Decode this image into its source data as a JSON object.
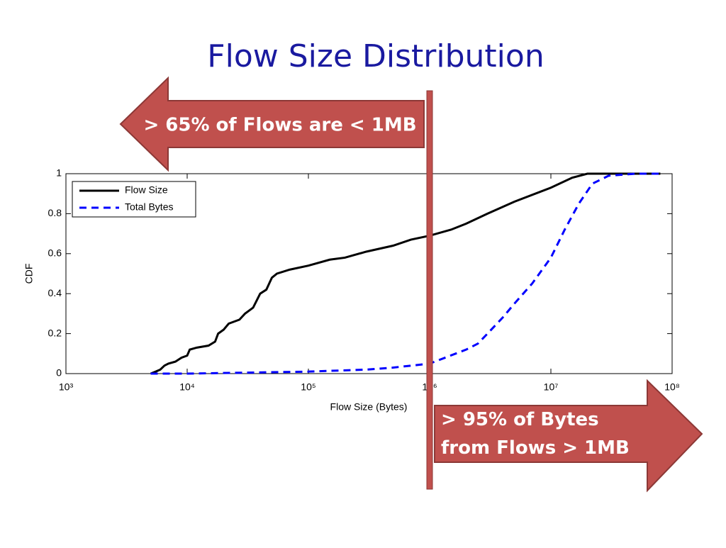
{
  "chart_data": {
    "type": "line",
    "title": "Flow Size Distribution",
    "xlabel": "Flow Size (Bytes)",
    "ylabel": "CDF",
    "xscale": "log",
    "xlim": [
      1000,
      100000000
    ],
    "xticks": [
      {
        "value": 1000,
        "label": "10³"
      },
      {
        "value": 10000,
        "label": "10⁴"
      },
      {
        "value": 100000,
        "label": "10⁵"
      },
      {
        "value": 1000000,
        "label": "10⁶"
      },
      {
        "value": 10000000,
        "label": "10⁷"
      },
      {
        "value": 100000000,
        "label": "10⁸"
      }
    ],
    "ylim": [
      0,
      1
    ],
    "yticks": [
      0,
      0.2,
      0.4,
      0.6,
      0.8,
      1
    ],
    "grid": false,
    "legend": "upper-left",
    "series": [
      {
        "name": "Flow Size",
        "color": "#000000",
        "style": "solid",
        "x": [
          5000,
          5500,
          6000,
          6500,
          7000,
          8000,
          9000,
          10000,
          10500,
          12000,
          15000,
          17000,
          18000,
          20000,
          22000,
          27000,
          30000,
          35000,
          40000,
          45000,
          50000,
          55000,
          70000,
          100000,
          150000,
          200000,
          300000,
          500000,
          700000,
          1000000,
          1500000,
          2000000,
          3000000,
          5000000,
          10000000,
          15000000,
          20000000,
          80000000
        ],
        "values": [
          0,
          0.01,
          0.02,
          0.04,
          0.05,
          0.06,
          0.08,
          0.09,
          0.12,
          0.13,
          0.14,
          0.16,
          0.2,
          0.22,
          0.25,
          0.27,
          0.3,
          0.33,
          0.4,
          0.42,
          0.48,
          0.5,
          0.52,
          0.54,
          0.57,
          0.58,
          0.61,
          0.64,
          0.67,
          0.69,
          0.72,
          0.75,
          0.8,
          0.86,
          0.93,
          0.98,
          1,
          1
        ]
      },
      {
        "name": "Total Bytes",
        "color": "#0000ff",
        "style": "dashed",
        "x": [
          5000,
          10000,
          100000,
          300000,
          500000,
          1000000,
          2000000,
          2500000,
          3000000,
          4000000,
          5000000,
          7000000,
          10000000,
          13000000,
          17000000,
          22000000,
          30000000,
          50000000,
          80000000
        ],
        "values": [
          0,
          0,
          0.01,
          0.02,
          0.03,
          0.05,
          0.12,
          0.15,
          0.2,
          0.28,
          0.35,
          0.45,
          0.58,
          0.72,
          0.85,
          0.95,
          0.99,
          1,
          1
        ]
      }
    ],
    "reference_line": {
      "x": 1000000,
      "color": "#c0504d"
    },
    "annotations": [
      "> 65% of Flows are < 1MB",
      "> 95% of Bytes from Flows > 1MB"
    ]
  }
}
